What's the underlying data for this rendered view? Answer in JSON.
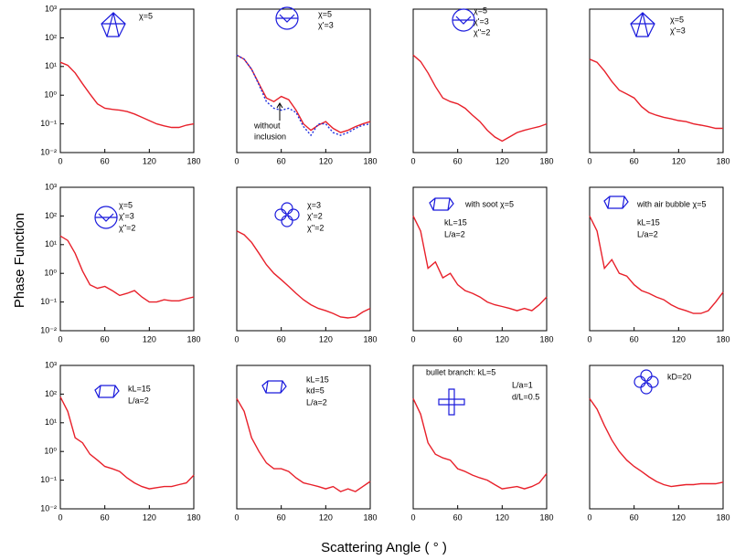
{
  "figure": {
    "ylabel": "Phase Function",
    "xlabel": "Scattering Angle ( ° )"
  },
  "chart_data": [
    {
      "type": "line",
      "log_y": true,
      "xlim": [
        0,
        180
      ],
      "ylim": [
        0.01,
        1000
      ],
      "xticks": [
        0,
        60,
        120,
        180
      ],
      "yticks": [
        {
          "value": 1000,
          "label": "10³"
        },
        {
          "value": 100,
          "label": "10²"
        },
        {
          "value": 10,
          "label": "10¹"
        },
        {
          "value": 1,
          "label": "10⁰"
        },
        {
          "value": 0.1,
          "label": "10⁻¹"
        },
        {
          "value": 0.01,
          "label": "10⁻²"
        }
      ],
      "x": [
        0,
        10,
        20,
        30,
        40,
        50,
        60,
        70,
        80,
        90,
        100,
        110,
        120,
        130,
        140,
        150,
        160,
        170,
        180
      ],
      "series": [
        {
          "color": "#e8202a",
          "values": [
            14,
            11,
            6,
            2.5,
            1.1,
            0.5,
            0.35,
            0.32,
            0.3,
            0.27,
            0.22,
            0.17,
            0.13,
            0.1,
            0.085,
            0.075,
            0.075,
            0.09,
            0.1
          ]
        }
      ],
      "annotations": [
        "χ=5"
      ]
    },
    {
      "type": "line",
      "log_y": true,
      "xlim": [
        0,
        180
      ],
      "ylim": [
        0.01,
        1000
      ],
      "xticks": [
        0,
        60,
        120,
        180
      ],
      "x": [
        0,
        10,
        20,
        30,
        40,
        50,
        60,
        70,
        80,
        90,
        100,
        110,
        120,
        130,
        140,
        150,
        160,
        170,
        180
      ],
      "series": [
        {
          "color": "#e8202a",
          "values": [
            25,
            18,
            8,
            2.5,
            0.8,
            0.6,
            0.9,
            0.7,
            0.3,
            0.1,
            0.06,
            0.09,
            0.12,
            0.07,
            0.05,
            0.06,
            0.08,
            0.1,
            0.12
          ]
        },
        {
          "color": "#2030e0",
          "dashed": true,
          "values": [
            25,
            18,
            8,
            2.3,
            0.6,
            0.35,
            0.3,
            0.35,
            0.25,
            0.08,
            0.04,
            0.1,
            0.1,
            0.05,
            0.04,
            0.05,
            0.07,
            0.09,
            0.1
          ]
        }
      ],
      "annotations": [
        "χ=5",
        "χ'=3"
      ],
      "note": [
        "without",
        "inclusion"
      ]
    },
    {
      "type": "line",
      "log_y": true,
      "xlim": [
        0,
        180
      ],
      "ylim": [
        0.01,
        1000
      ],
      "xticks": [
        0,
        60,
        120,
        180
      ],
      "x": [
        0,
        10,
        20,
        30,
        40,
        50,
        60,
        70,
        80,
        90,
        100,
        110,
        120,
        130,
        140,
        150,
        160,
        170,
        180
      ],
      "series": [
        {
          "color": "#e8202a",
          "values": [
            25,
            15,
            6,
            2,
            0.8,
            0.6,
            0.5,
            0.35,
            0.2,
            0.12,
            0.06,
            0.035,
            0.025,
            0.035,
            0.05,
            0.06,
            0.07,
            0.08,
            0.1
          ]
        }
      ],
      "annotations": [
        "χ=5",
        "χ'=3",
        "χ''=2"
      ]
    },
    {
      "type": "line",
      "log_y": true,
      "xlim": [
        0,
        180
      ],
      "ylim": [
        0.01,
        1000
      ],
      "xticks": [
        0,
        60,
        120,
        180
      ],
      "x": [
        0,
        10,
        20,
        30,
        40,
        50,
        60,
        70,
        80,
        90,
        100,
        110,
        120,
        130,
        140,
        150,
        160,
        170,
        180
      ],
      "series": [
        {
          "color": "#e8202a",
          "values": [
            18,
            14,
            7,
            3,
            1.5,
            1.1,
            0.8,
            0.4,
            0.25,
            0.2,
            0.17,
            0.15,
            0.13,
            0.12,
            0.1,
            0.09,
            0.08,
            0.07,
            0.07
          ]
        }
      ],
      "annotations": [
        "χ=5",
        "χ'=3"
      ]
    },
    {
      "type": "line",
      "log_y": true,
      "xlim": [
        0,
        180
      ],
      "ylim": [
        0.01,
        1000
      ],
      "xticks": [
        0,
        60,
        120,
        180
      ],
      "yticks": [
        {
          "value": 1000,
          "label": "10³"
        },
        {
          "value": 100,
          "label": "10²"
        },
        {
          "value": 10,
          "label": "10¹"
        },
        {
          "value": 1,
          "label": "10⁰"
        },
        {
          "value": 0.1,
          "label": "10⁻¹"
        },
        {
          "value": 0.01,
          "label": "10⁻²"
        }
      ],
      "x": [
        0,
        10,
        20,
        30,
        40,
        50,
        60,
        70,
        80,
        90,
        100,
        110,
        120,
        130,
        140,
        150,
        160,
        170,
        180
      ],
      "series": [
        {
          "color": "#e8202a",
          "values": [
            20,
            14,
            5,
            1.2,
            0.4,
            0.3,
            0.35,
            0.25,
            0.17,
            0.2,
            0.25,
            0.15,
            0.1,
            0.1,
            0.12,
            0.11,
            0.11,
            0.13,
            0.15
          ]
        }
      ],
      "annotations": [
        "χ=5",
        "χ'=3",
        "χ''=2"
      ]
    },
    {
      "type": "line",
      "log_y": true,
      "xlim": [
        0,
        180
      ],
      "ylim": [
        0.01,
        1000
      ],
      "xticks": [
        0,
        60,
        120,
        180
      ],
      "x": [
        0,
        10,
        20,
        30,
        40,
        50,
        60,
        70,
        80,
        90,
        100,
        110,
        120,
        130,
        140,
        150,
        160,
        170,
        180
      ],
      "series": [
        {
          "color": "#e8202a",
          "values": [
            30,
            22,
            12,
            5,
            2,
            1,
            0.6,
            0.35,
            0.2,
            0.12,
            0.08,
            0.06,
            0.05,
            0.04,
            0.03,
            0.028,
            0.03,
            0.045,
            0.06
          ]
        }
      ],
      "annotations": [
        "χ=3",
        "χ'=2",
        "χ''=2"
      ]
    },
    {
      "type": "line",
      "log_y": true,
      "xlim": [
        0,
        180
      ],
      "ylim": [
        0.01,
        1000
      ],
      "xticks": [
        0,
        60,
        120,
        180
      ],
      "x": [
        0,
        10,
        20,
        30,
        40,
        50,
        60,
        70,
        80,
        90,
        100,
        110,
        120,
        130,
        140,
        150,
        160,
        170,
        180
      ],
      "series": [
        {
          "color": "#e8202a",
          "values": [
            100,
            30,
            1.5,
            2.5,
            0.7,
            1,
            0.4,
            0.25,
            0.2,
            0.15,
            0.1,
            0.08,
            0.07,
            0.06,
            0.05,
            0.06,
            0.05,
            0.08,
            0.15
          ]
        }
      ],
      "annotations": [
        "with soot χ=5",
        "kL=15",
        "L/a=2"
      ]
    },
    {
      "type": "line",
      "log_y": true,
      "xlim": [
        0,
        180
      ],
      "ylim": [
        0.01,
        1000
      ],
      "xticks": [
        0,
        60,
        120,
        180
      ],
      "x": [
        0,
        10,
        20,
        30,
        40,
        50,
        60,
        70,
        80,
        90,
        100,
        110,
        120,
        130,
        140,
        150,
        160,
        170,
        180
      ],
      "series": [
        {
          "color": "#e8202a",
          "values": [
            100,
            30,
            1.5,
            3,
            1,
            0.8,
            0.4,
            0.25,
            0.2,
            0.15,
            0.12,
            0.08,
            0.06,
            0.05,
            0.04,
            0.04,
            0.05,
            0.1,
            0.22
          ]
        }
      ],
      "annotations": [
        "with air bubble χ=5",
        "kL=15",
        "L/a=2"
      ]
    },
    {
      "type": "line",
      "log_y": true,
      "xlim": [
        0,
        180
      ],
      "ylim": [
        0.01,
        1000
      ],
      "xticks": [
        0,
        60,
        120,
        180
      ],
      "yticks": [
        {
          "value": 1000,
          "label": "10³"
        },
        {
          "value": 100,
          "label": "10²"
        },
        {
          "value": 10,
          "label": "10¹"
        },
        {
          "value": 1,
          "label": "10⁰"
        },
        {
          "value": 0.1,
          "label": "10⁻¹"
        },
        {
          "value": 0.01,
          "label": "10⁻²"
        }
      ],
      "x": [
        0,
        10,
        20,
        30,
        40,
        50,
        60,
        70,
        80,
        90,
        100,
        110,
        120,
        130,
        140,
        150,
        160,
        170,
        180
      ],
      "series": [
        {
          "color": "#e8202a",
          "values": [
            80,
            25,
            3,
            2,
            0.8,
            0.5,
            0.3,
            0.25,
            0.2,
            0.12,
            0.08,
            0.06,
            0.05,
            0.055,
            0.06,
            0.06,
            0.07,
            0.08,
            0.15
          ]
        }
      ],
      "annotations": [
        "kL=15",
        "L/a=2"
      ]
    },
    {
      "type": "line",
      "log_y": true,
      "xlim": [
        0,
        180
      ],
      "ylim": [
        0.01,
        1000
      ],
      "xticks": [
        0,
        60,
        120,
        180
      ],
      "x": [
        0,
        10,
        20,
        30,
        40,
        50,
        60,
        70,
        80,
        90,
        100,
        110,
        120,
        130,
        140,
        150,
        160,
        170,
        180
      ],
      "series": [
        {
          "color": "#e8202a",
          "values": [
            70,
            25,
            3,
            1,
            0.4,
            0.25,
            0.25,
            0.2,
            0.12,
            0.08,
            0.07,
            0.06,
            0.05,
            0.06,
            0.04,
            0.05,
            0.04,
            0.06,
            0.09
          ]
        }
      ],
      "annotations": [
        "kL=15",
        "kd=5",
        "L/a=2"
      ]
    },
    {
      "type": "line",
      "log_y": true,
      "xlim": [
        0,
        180
      ],
      "ylim": [
        0.01,
        1000
      ],
      "xticks": [
        0,
        60,
        120,
        180
      ],
      "x": [
        0,
        10,
        20,
        30,
        40,
        50,
        60,
        70,
        80,
        90,
        100,
        110,
        120,
        130,
        140,
        150,
        160,
        170,
        180
      ],
      "series": [
        {
          "color": "#e8202a",
          "values": [
            70,
            20,
            2,
            0.8,
            0.6,
            0.5,
            0.25,
            0.2,
            0.15,
            0.12,
            0.1,
            0.07,
            0.05,
            0.055,
            0.06,
            0.05,
            0.06,
            0.08,
            0.17
          ]
        }
      ],
      "annotations": [
        "bullet branch: kL=5",
        "L/a=1",
        "d/L=0.5"
      ]
    },
    {
      "type": "line",
      "log_y": true,
      "xlim": [
        0,
        180
      ],
      "ylim": [
        0.01,
        1000
      ],
      "xticks": [
        0,
        60,
        120,
        180
      ],
      "x": [
        0,
        10,
        20,
        30,
        40,
        50,
        60,
        70,
        80,
        90,
        100,
        110,
        120,
        130,
        140,
        150,
        160,
        170,
        180
      ],
      "series": [
        {
          "color": "#e8202a",
          "values": [
            70,
            30,
            8,
            2.5,
            1,
            0.5,
            0.3,
            0.2,
            0.13,
            0.09,
            0.07,
            0.06,
            0.065,
            0.07,
            0.07,
            0.075,
            0.075,
            0.075,
            0.085
          ]
        }
      ],
      "annotations": [
        "kD=20"
      ]
    }
  ]
}
